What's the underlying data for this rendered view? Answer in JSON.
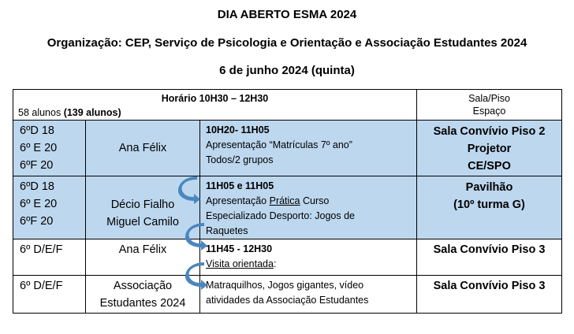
{
  "title": "DIA ABERTO ESMA 2024",
  "organization": "Organização: CEP, Serviço de Psicologia e Orientação e Associação Estudantes 2024",
  "date": "6 de junho 2024 (quinta)",
  "header": {
    "schedule": "Horário 10H30 – 12H30",
    "students": "58 alunos ",
    "students_total": "(139 alunos)",
    "room_line1": "Sala/Piso",
    "room_line2": "Espaço"
  },
  "rows": [
    {
      "classes": [
        "6ºD 18",
        "6º E 20",
        "6ºF 20"
      ],
      "people": [
        "Ana Félix"
      ],
      "time": "10H20- 11H05",
      "activity": [
        "Apresentação “Matrículas 7º ano”",
        "Todos/2 grupos"
      ],
      "room": [
        "Sala Convívio Piso 2",
        "Projetor",
        "CE/SPO"
      ]
    },
    {
      "classes": [
        "6ºD 18",
        "6º E 20",
        "6ºF 20"
      ],
      "people": [
        "Décio Fialho",
        "Miguel Camilo"
      ],
      "time": "11H05 e 11H05",
      "activity_pre": "Apresentação ",
      "activity_u": "Prática",
      "activity_post": " Curso",
      "activity_rest": [
        "Especializado Desporto: Jogos de",
        "Raquetes"
      ],
      "room": [
        "Pavilhão",
        "(10º turma G)"
      ]
    },
    {
      "classes": [
        "6º D/E/F"
      ],
      "people": [
        "Ana Félix"
      ],
      "time": "11H45 - 12H30",
      "activity_u": "Visita orientada",
      "activity_post": ":",
      "room": [
        "Sala Convívio Piso 3"
      ]
    },
    {
      "classes": [
        "6º D/E/F"
      ],
      "people": [
        "Associação",
        "Estudantes 2024"
      ],
      "activity": [
        "Matraquilhos, Jogos gigantes, vídeo",
        "atividades da Associação Estudantes"
      ],
      "room": [
        "Sala Convívio Piso 3"
      ]
    }
  ],
  "colors": {
    "highlight": "#bdd7ee",
    "arrow": "#4a86c0"
  }
}
